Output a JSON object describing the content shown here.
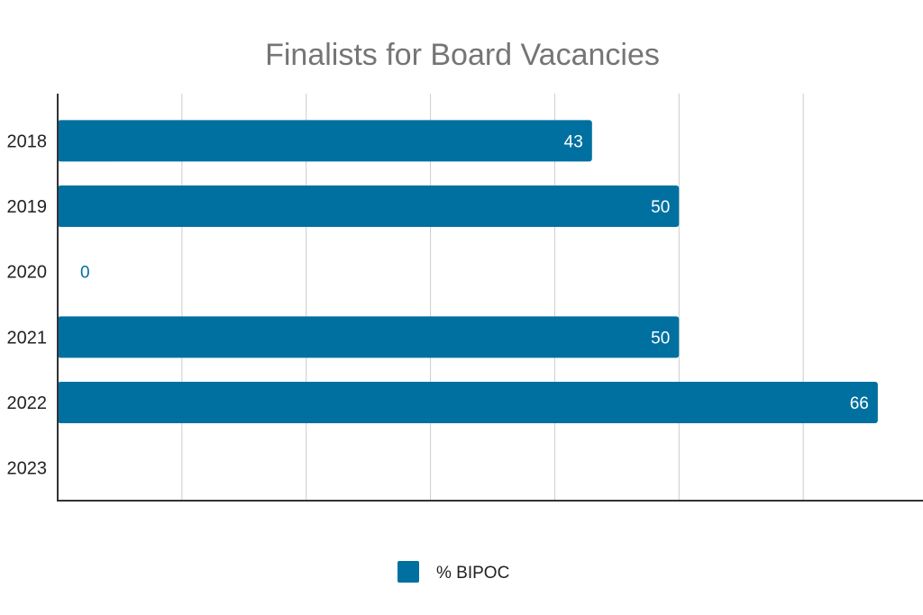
{
  "chart_data": {
    "type": "bar",
    "orientation": "horizontal",
    "title": "Finalists for Board Vacancies",
    "categories": [
      "2018",
      "2019",
      "2020",
      "2021",
      "2022",
      "2023"
    ],
    "series": [
      {
        "name": "% BIPOC",
        "values": [
          43,
          50,
          0,
          50,
          66,
          null
        ],
        "labels": [
          "43",
          "50",
          "0",
          "50",
          "66",
          ""
        ],
        "color": "#0070A0"
      }
    ],
    "xlim": [
      0,
      70
    ],
    "x_gridlines": [
      0,
      10,
      20,
      30,
      40,
      50,
      60,
      70
    ],
    "grid": true,
    "x_tick_labels_shown": false,
    "legend": "bottom"
  }
}
